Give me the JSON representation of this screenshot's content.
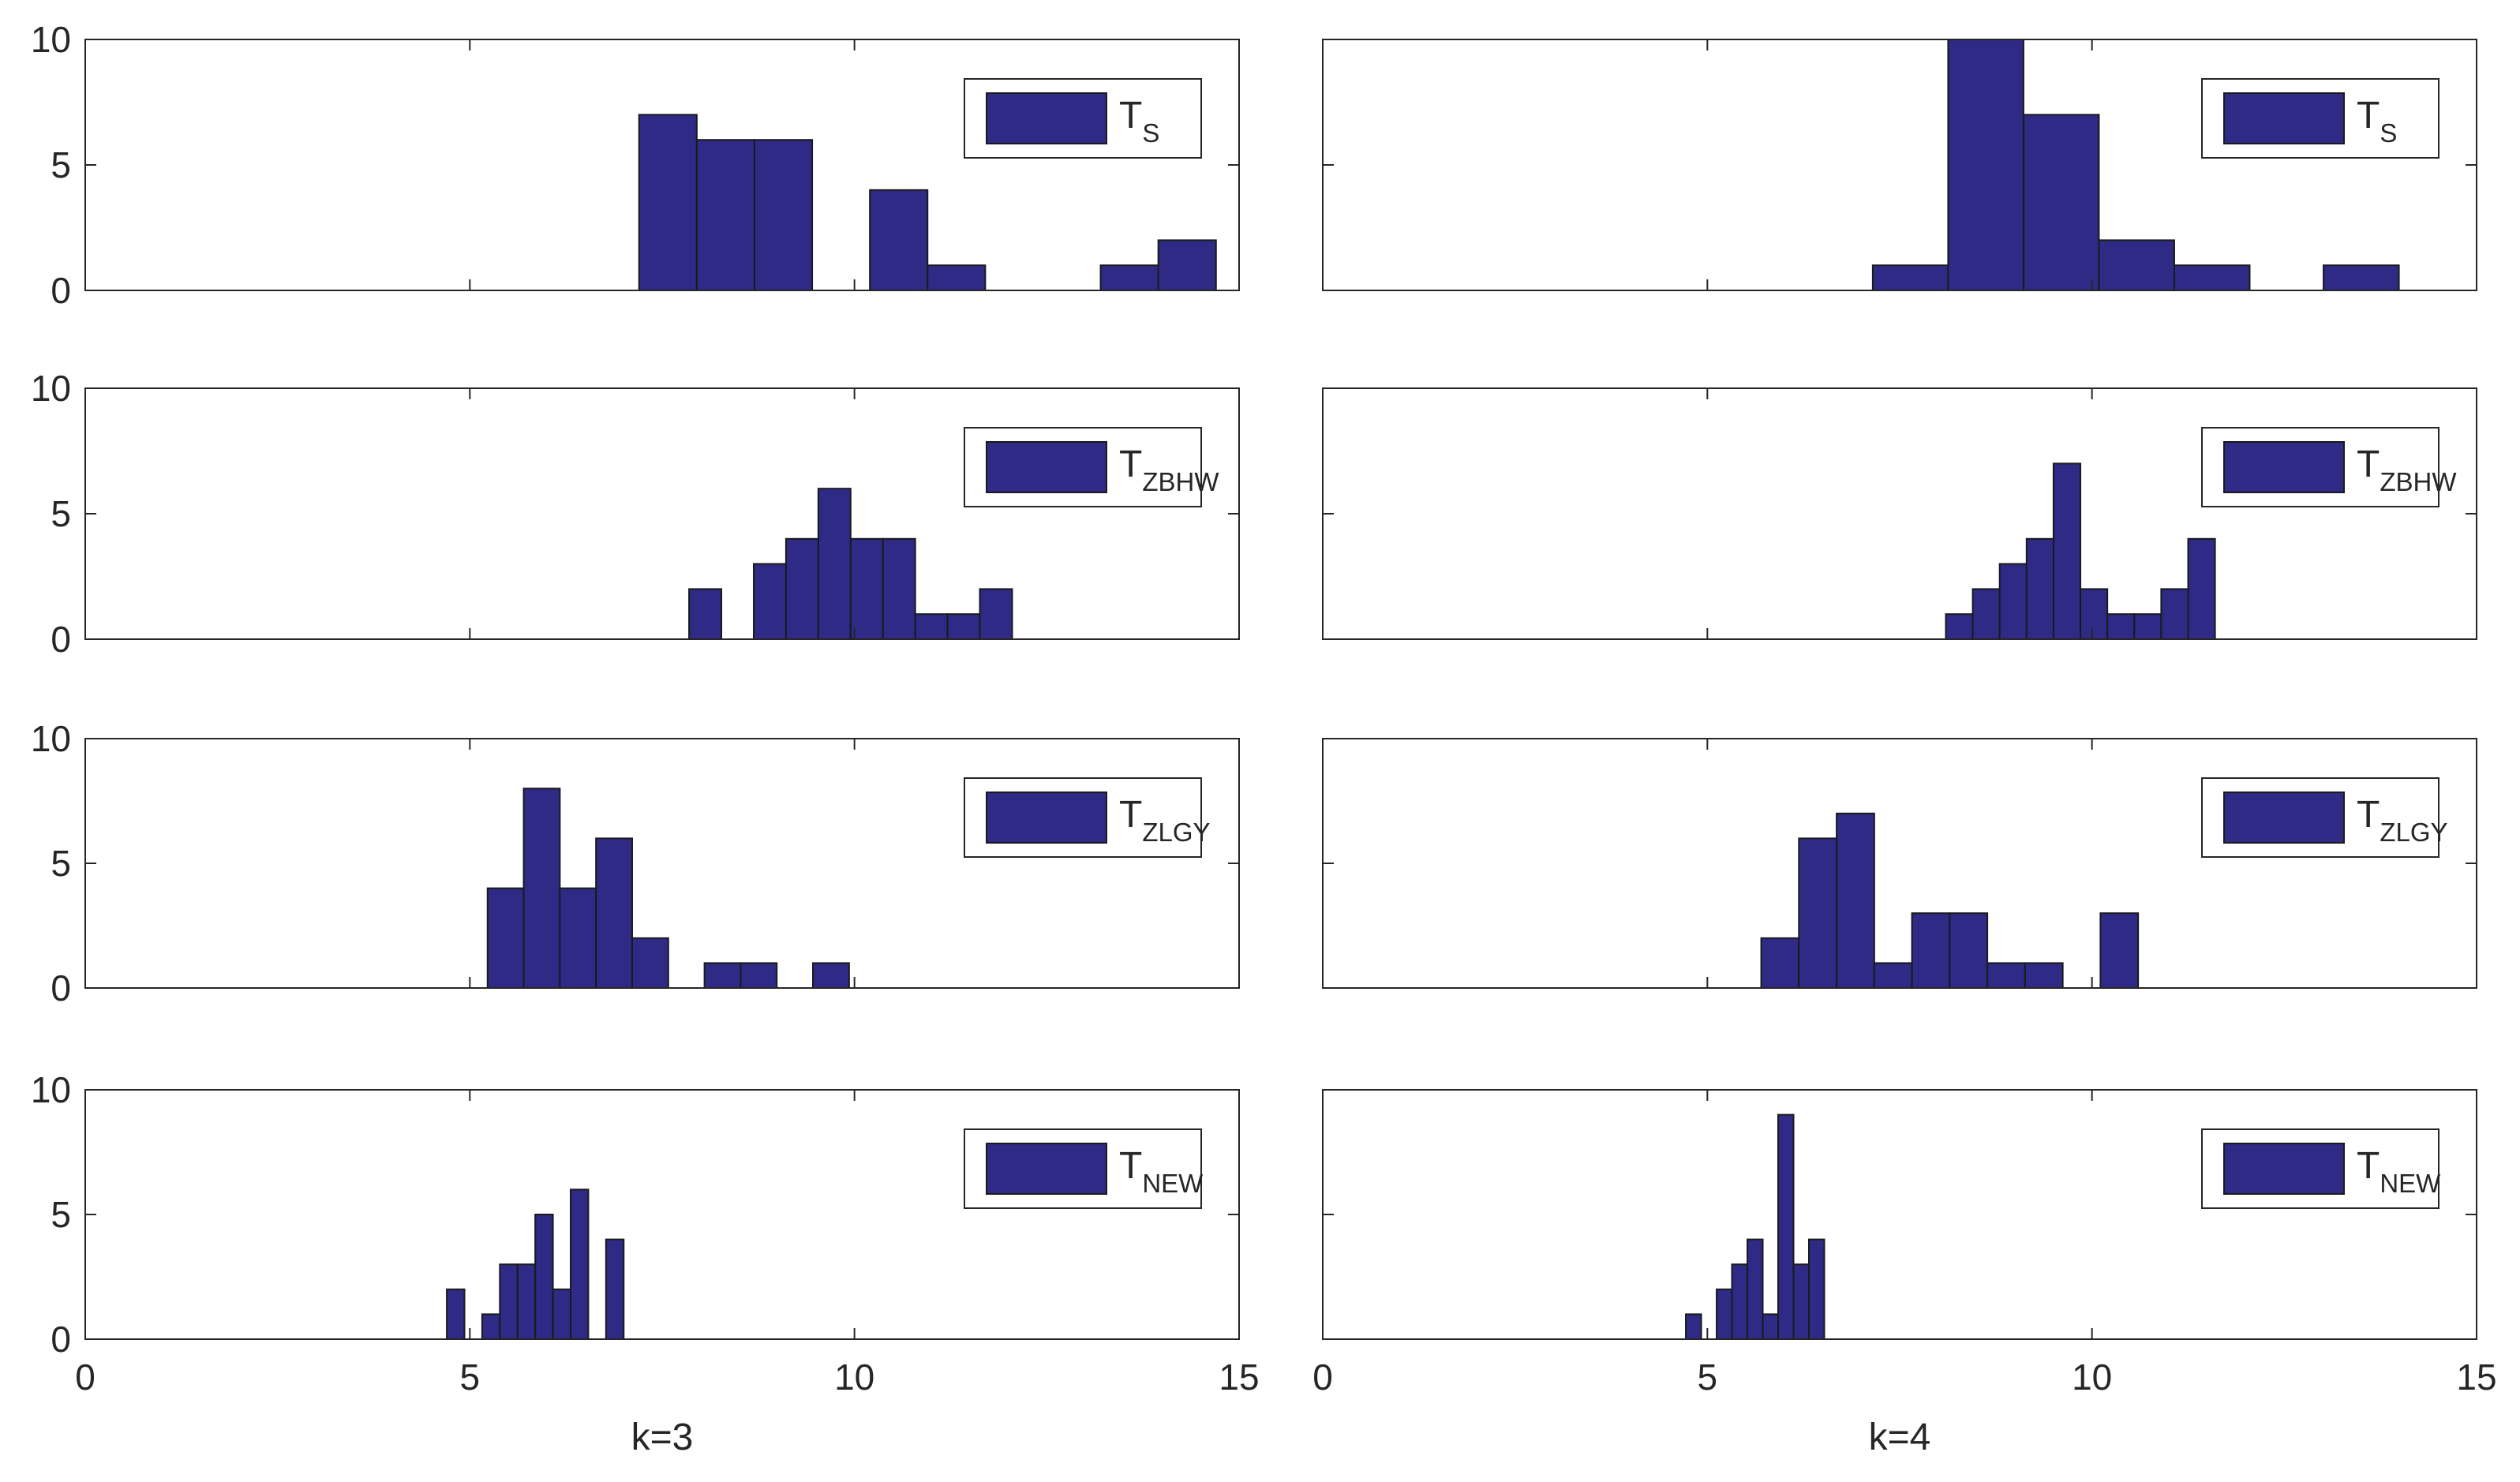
{
  "colors": {
    "bar": "#2e2a86",
    "axis": "#262626"
  },
  "chart_data": [
    {
      "type": "bar",
      "legend": {
        "main": "T",
        "sub": "S"
      },
      "xlim": [
        0,
        15
      ],
      "ylim": [
        0,
        10
      ],
      "yticks": [
        "0",
        "5",
        "10"
      ],
      "xticks": [],
      "xlabel": "",
      "bins": [
        {
          "x0": 7.2,
          "x1": 7.95,
          "v": 7
        },
        {
          "x0": 7.95,
          "x1": 8.7,
          "v": 6
        },
        {
          "x0": 8.7,
          "x1": 9.45,
          "v": 6
        },
        {
          "x0": 10.2,
          "x1": 10.95,
          "v": 4
        },
        {
          "x0": 10.95,
          "x1": 11.7,
          "v": 1
        },
        {
          "x0": 13.2,
          "x1": 13.95,
          "v": 1
        },
        {
          "x0": 13.95,
          "x1": 14.7,
          "v": 2
        }
      ]
    },
    {
      "type": "bar",
      "legend": {
        "main": "T",
        "sub": "S"
      },
      "xlim": [
        0,
        15
      ],
      "ylim": [
        0,
        10
      ],
      "yticks": [],
      "xticks": [],
      "xlabel": "",
      "bins": [
        {
          "x0": 7.15,
          "x1": 8.13,
          "v": 1
        },
        {
          "x0": 8.13,
          "x1": 9.11,
          "v": 10
        },
        {
          "x0": 9.11,
          "x1": 10.09,
          "v": 7
        },
        {
          "x0": 10.09,
          "x1": 11.07,
          "v": 2
        },
        {
          "x0": 11.07,
          "x1": 12.05,
          "v": 1
        },
        {
          "x0": 13.01,
          "x1": 13.99,
          "v": 1
        }
      ]
    },
    {
      "type": "bar",
      "legend": {
        "main": "T",
        "sub": "ZBHW"
      },
      "xlim": [
        0,
        15
      ],
      "ylim": [
        0,
        10
      ],
      "yticks": [
        "0",
        "5",
        "10"
      ],
      "xticks": [],
      "xlabel": "",
      "bins": [
        {
          "x0": 7.85,
          "x1": 8.27,
          "v": 2
        },
        {
          "x0": 8.69,
          "x1": 9.11,
          "v": 3
        },
        {
          "x0": 9.11,
          "x1": 9.53,
          "v": 4
        },
        {
          "x0": 9.53,
          "x1": 9.95,
          "v": 6
        },
        {
          "x0": 9.95,
          "x1": 10.37,
          "v": 4
        },
        {
          "x0": 10.37,
          "x1": 10.79,
          "v": 4
        },
        {
          "x0": 10.79,
          "x1": 11.21,
          "v": 1
        },
        {
          "x0": 11.21,
          "x1": 11.63,
          "v": 1
        },
        {
          "x0": 11.63,
          "x1": 12.05,
          "v": 2
        }
      ]
    },
    {
      "type": "bar",
      "legend": {
        "main": "T",
        "sub": "ZBHW"
      },
      "xlim": [
        0,
        15
      ],
      "ylim": [
        0,
        10
      ],
      "yticks": [],
      "xticks": [],
      "xlabel": "",
      "bins": [
        {
          "x0": 8.1,
          "x1": 8.45,
          "v": 1
        },
        {
          "x0": 8.45,
          "x1": 8.8,
          "v": 2
        },
        {
          "x0": 8.8,
          "x1": 9.15,
          "v": 3
        },
        {
          "x0": 9.15,
          "x1": 9.5,
          "v": 4
        },
        {
          "x0": 9.5,
          "x1": 9.85,
          "v": 7
        },
        {
          "x0": 9.85,
          "x1": 10.2,
          "v": 2
        },
        {
          "x0": 10.2,
          "x1": 10.55,
          "v": 1
        },
        {
          "x0": 10.55,
          "x1": 10.9,
          "v": 1
        },
        {
          "x0": 10.9,
          "x1": 11.25,
          "v": 2
        },
        {
          "x0": 11.25,
          "x1": 11.6,
          "v": 4
        }
      ]
    },
    {
      "type": "bar",
      "legend": {
        "main": "T",
        "sub": "ZLGY"
      },
      "xlim": [
        0,
        15
      ],
      "ylim": [
        0,
        10
      ],
      "yticks": [
        "0",
        "5",
        "10"
      ],
      "xticks": [],
      "xlabel": "",
      "bins": [
        {
          "x0": 5.23,
          "x1": 5.7,
          "v": 4
        },
        {
          "x0": 5.7,
          "x1": 6.17,
          "v": 8
        },
        {
          "x0": 6.17,
          "x1": 6.64,
          "v": 4
        },
        {
          "x0": 6.64,
          "x1": 7.11,
          "v": 6
        },
        {
          "x0": 7.11,
          "x1": 7.58,
          "v": 2
        },
        {
          "x0": 8.05,
          "x1": 8.52,
          "v": 1
        },
        {
          "x0": 8.52,
          "x1": 8.99,
          "v": 1
        },
        {
          "x0": 9.46,
          "x1": 9.93,
          "v": 1
        }
      ]
    },
    {
      "type": "bar",
      "legend": {
        "main": "T",
        "sub": "ZLGY"
      },
      "xlim": [
        0,
        15
      ],
      "ylim": [
        0,
        10
      ],
      "yticks": [],
      "xticks": [],
      "xlabel": "",
      "bins": [
        {
          "x0": 5.7,
          "x1": 6.19,
          "v": 2
        },
        {
          "x0": 6.19,
          "x1": 6.68,
          "v": 6
        },
        {
          "x0": 6.68,
          "x1": 7.17,
          "v": 7
        },
        {
          "x0": 7.17,
          "x1": 7.66,
          "v": 1
        },
        {
          "x0": 7.66,
          "x1": 8.15,
          "v": 3
        },
        {
          "x0": 8.15,
          "x1": 8.64,
          "v": 3
        },
        {
          "x0": 8.64,
          "x1": 9.13,
          "v": 1
        },
        {
          "x0": 9.13,
          "x1": 9.62,
          "v": 1
        },
        {
          "x0": 10.11,
          "x1": 10.6,
          "v": 3
        }
      ]
    },
    {
      "type": "bar",
      "legend": {
        "main": "T",
        "sub": "NEW"
      },
      "xlim": [
        0,
        15
      ],
      "ylim": [
        0,
        10
      ],
      "yticks": [
        "0",
        "5",
        "10"
      ],
      "xticks": [
        "0",
        "5",
        "10",
        "15"
      ],
      "xlabel": "k=3",
      "bins": [
        {
          "x0": 4.7,
          "x1": 4.93,
          "v": 2
        },
        {
          "x0": 5.16,
          "x1": 5.39,
          "v": 1
        },
        {
          "x0": 5.39,
          "x1": 5.62,
          "v": 3
        },
        {
          "x0": 5.62,
          "x1": 5.85,
          "v": 3
        },
        {
          "x0": 5.85,
          "x1": 6.08,
          "v": 5
        },
        {
          "x0": 6.08,
          "x1": 6.31,
          "v": 2
        },
        {
          "x0": 6.31,
          "x1": 6.54,
          "v": 6
        },
        {
          "x0": 6.77,
          "x1": 7.0,
          "v": 4
        }
      ]
    },
    {
      "type": "bar",
      "legend": {
        "main": "T",
        "sub": "NEW"
      },
      "xlim": [
        0,
        15
      ],
      "ylim": [
        0,
        10
      ],
      "yticks": [],
      "xticks": [
        "0",
        "5",
        "10",
        "15"
      ],
      "xlabel": "k=4",
      "bins": [
        {
          "x0": 4.72,
          "x1": 4.92,
          "v": 1
        },
        {
          "x0": 5.12,
          "x1": 5.32,
          "v": 2
        },
        {
          "x0": 5.32,
          "x1": 5.52,
          "v": 3
        },
        {
          "x0": 5.52,
          "x1": 5.72,
          "v": 4
        },
        {
          "x0": 5.72,
          "x1": 5.92,
          "v": 1
        },
        {
          "x0": 5.92,
          "x1": 6.12,
          "v": 9
        },
        {
          "x0": 6.12,
          "x1": 6.32,
          "v": 3
        },
        {
          "x0": 6.32,
          "x1": 6.52,
          "v": 4
        }
      ]
    }
  ]
}
